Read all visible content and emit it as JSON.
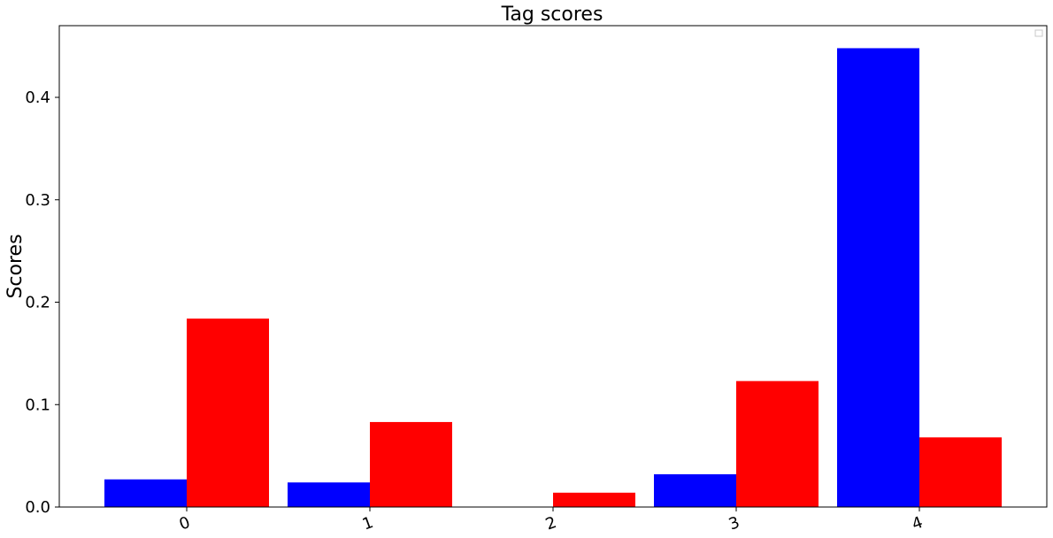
{
  "chart_data": {
    "type": "bar",
    "title": "Tag scores",
    "xlabel": "",
    "ylabel": "Scores",
    "categories": [
      "0",
      "1",
      "2",
      "3",
      "4"
    ],
    "series": [
      {
        "color": "#0000ff",
        "values": [
          0.027,
          0.024,
          0.0,
          0.032,
          0.448
        ]
      },
      {
        "color": "#ff0000",
        "values": [
          0.184,
          0.083,
          0.014,
          0.123,
          0.068
        ]
      }
    ],
    "ylim": [
      0,
      0.47
    ],
    "yticks": [
      "0.0",
      "0.1",
      "0.2",
      "0.3",
      "0.4"
    ],
    "ytick_values": [
      0,
      0.1,
      0.2,
      0.3,
      0.4
    ],
    "xtick_rotation_deg": 20,
    "grid": false,
    "legend": "top-right, empty"
  }
}
